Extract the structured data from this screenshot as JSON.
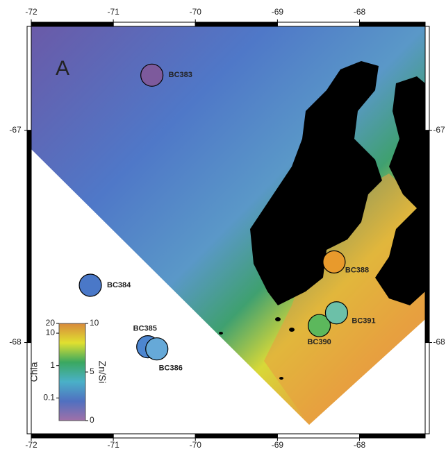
{
  "map": {
    "panel_label": "A",
    "xticks": [
      -72,
      -71,
      -70,
      -69,
      -68
    ],
    "yticks": [
      -67,
      -68
    ],
    "xlim": [
      -72,
      -67.2
    ],
    "ylim": [
      -66.51,
      -68.43
    ],
    "stations": [
      {
        "label": "BC383",
        "lon": -70.53,
        "lat": -66.74,
        "color": "#7d5a9c"
      },
      {
        "label": "BC384",
        "lon": -71.28,
        "lat": -67.73,
        "color": "#4a78c8"
      },
      {
        "label": "BC385",
        "lon": -70.58,
        "lat": -68.02,
        "color": "#4d86d0"
      },
      {
        "label": "BC386",
        "lon": -70.47,
        "lat": -68.03,
        "color": "#66a9d8"
      },
      {
        "label": "BC388",
        "lon": -68.31,
        "lat": -67.62,
        "color": "#e89a2c"
      },
      {
        "label": "BC390",
        "lon": -68.49,
        "lat": -67.92,
        "color": "#5cb85c"
      },
      {
        "label": "BC391",
        "lon": -68.28,
        "lat": -67.86,
        "color": "#6cc0a8"
      }
    ],
    "colorbar": {
      "left_title": "Chla",
      "right_title": "Zn/Si",
      "left_ticks": [
        20,
        10,
        1,
        0.1
      ],
      "left_lim": [
        0.02,
        20
      ],
      "left_log": true,
      "right_ticks": [
        10,
        5,
        0
      ],
      "right_lim": [
        0,
        10
      ]
    }
  }
}
